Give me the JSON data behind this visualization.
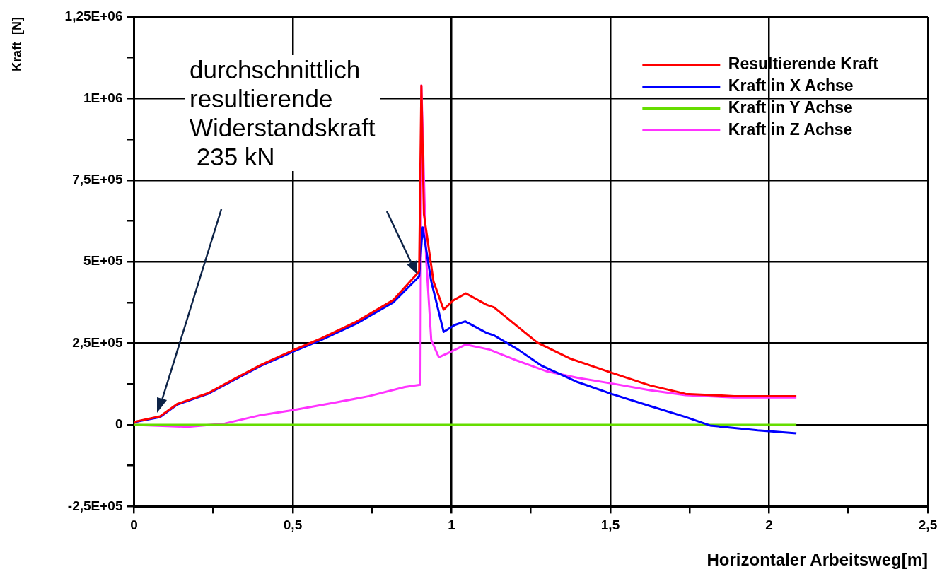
{
  "chart_data": {
    "type": "line",
    "xlabel": "Horizontaler Arbeitsweg[m]",
    "ylabel": "Kraft  [N]",
    "annotations": [
      "durchschnittlich\nresultierende\nWiderstandskraft\n 235 kN"
    ],
    "xlim": [
      0,
      2.5
    ],
    "ylim": [
      -250000,
      1250000
    ],
    "xticks": [
      0,
      {
        "value": 0.25,
        "label": null
      },
      {
        "value": 0.5,
        "label": "0,5"
      },
      {
        "value": 0.75,
        "label": null
      },
      1,
      {
        "value": 1.25,
        "label": null
      },
      {
        "value": 1.5,
        "label": "1,5"
      },
      {
        "value": 1.75,
        "label": null
      },
      2,
      {
        "value": 2.25,
        "label": null
      },
      {
        "value": 2.5,
        "label": "2,5"
      }
    ],
    "yticks": [
      {
        "value": -250000,
        "label": "-2,5E+05"
      },
      {
        "value": -125000,
        "label": null
      },
      0,
      {
        "value": 125000,
        "label": null
      },
      {
        "value": 250000,
        "label": "2,5E+05"
      },
      {
        "value": 375000,
        "label": null
      },
      {
        "value": 500000,
        "label": "5E+05"
      },
      {
        "value": 625000,
        "label": null
      },
      {
        "value": 750000,
        "label": "7,5E+05"
      },
      {
        "value": 875000,
        "label": null
      },
      {
        "value": 1000000,
        "label": "1E+06"
      },
      {
        "value": 1125000,
        "label": null
      },
      {
        "value": 1250000,
        "label": "1,25E+06"
      }
    ],
    "grid": true,
    "legend": "top right",
    "marker": "none",
    "line_style": "solid",
    "series": [
      {
        "name": "Resultierende Kraft",
        "color": "#ff0000",
        "x": [
          0,
          0.082,
          0.136,
          0.233,
          0.324,
          0.4,
          0.5,
          0.59,
          0.7,
          0.816,
          0.898,
          0.905,
          0.913,
          0.943,
          0.975,
          1.005,
          1.045,
          1.11,
          1.134,
          1.27,
          1.374,
          1.503,
          1.624,
          1.737,
          1.89,
          2.086
        ],
        "values": [
          9000,
          26000,
          64000,
          97000,
          145000,
          184000,
          228000,
          265000,
          316000,
          382000,
          470000,
          1040000,
          645000,
          440000,
          353000,
          381000,
          403000,
          368000,
          360000,
          252000,
          203000,
          160000,
          121000,
          95000,
          88000,
          88000
        ]
      },
      {
        "name": "Kraft in X Achse",
        "color": "#0000ff",
        "x": [
          0,
          0.082,
          0.136,
          0.233,
          0.324,
          0.4,
          0.5,
          0.59,
          0.7,
          0.816,
          0.898,
          0.909,
          0.936,
          0.975,
          1.01,
          1.043,
          1.11,
          1.134,
          1.209,
          1.284,
          1.397,
          1.503,
          1.624,
          1.737,
          1.814,
          1.964,
          2.086
        ],
        "values": [
          8000,
          24000,
          62000,
          95000,
          142000,
          181000,
          224000,
          260000,
          310000,
          375000,
          455000,
          605000,
          440000,
          285000,
          306000,
          317000,
          282000,
          274000,
          231000,
          181000,
          131000,
          95000,
          58000,
          24000,
          -2000,
          -17000,
          -26000
        ]
      },
      {
        "name": "Kraft in Y Achse",
        "color": "#66dd00",
        "x": [
          0,
          0.5,
          1,
          1.5,
          2,
          2.086
        ],
        "values": [
          0,
          0,
          0,
          0,
          0,
          0
        ]
      },
      {
        "name": "Kraft in Z Achse",
        "color": "#ff33ff",
        "x": [
          0,
          0.17,
          0.286,
          0.4,
          0.5,
          0.627,
          0.74,
          0.853,
          0.902,
          0.905,
          0.92,
          0.936,
          0.96,
          0.998,
          1.045,
          1.118,
          1.209,
          1.3,
          1.397,
          1.503,
          1.624,
          1.737,
          1.89,
          2.086
        ],
        "values": [
          0,
          -6000,
          4000,
          30000,
          45000,
          67000,
          88000,
          116000,
          123000,
          1040000,
          510000,
          260000,
          207000,
          224000,
          246000,
          231000,
          196000,
          164000,
          144000,
          127000,
          106000,
          91000,
          84000,
          84000
        ]
      }
    ]
  }
}
